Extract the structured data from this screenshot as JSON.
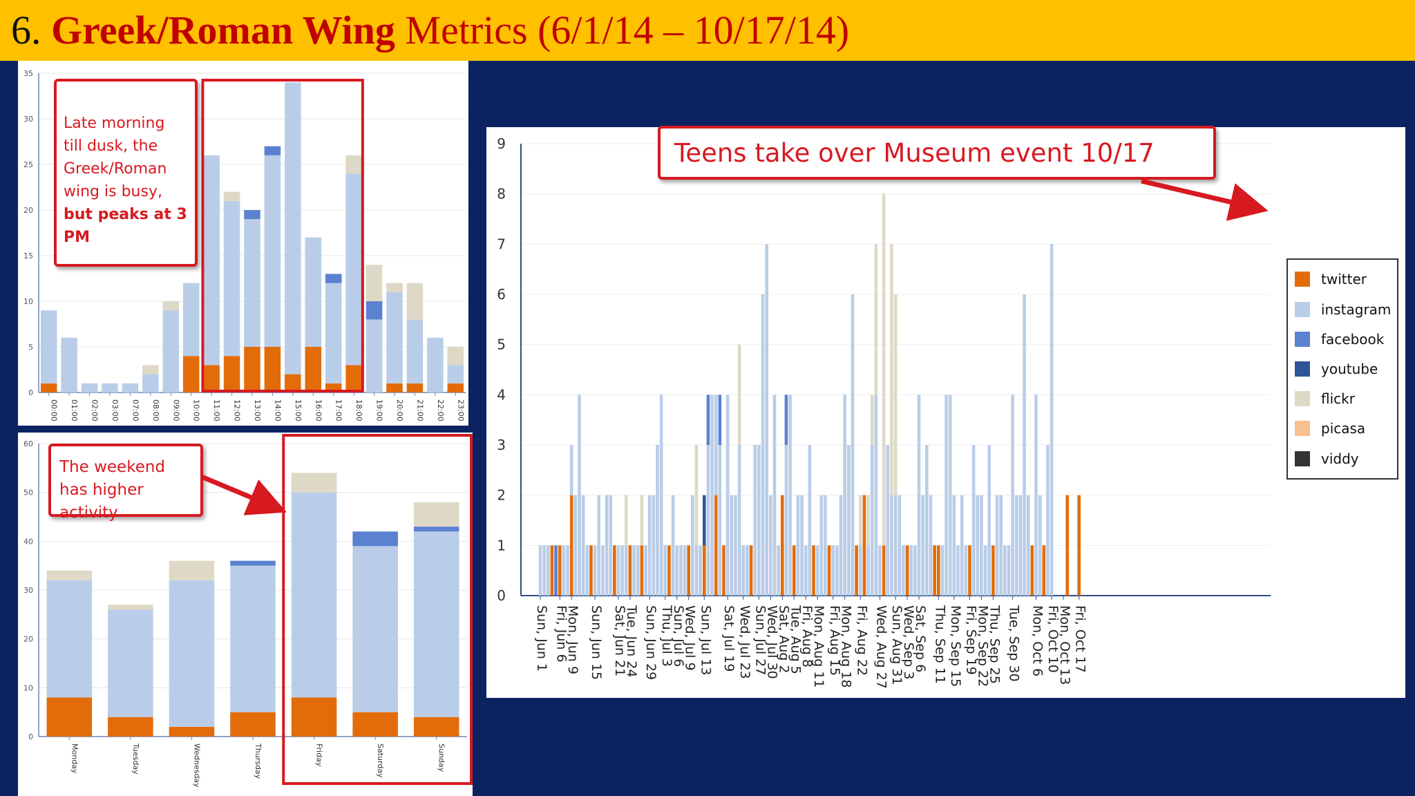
{
  "header": {
    "number": "6.",
    "wing": "Greek/Roman Wing",
    "rest": "Metrics (6/1/14 – 10/17/14)"
  },
  "colors": {
    "twitter": "#e36c0a",
    "instagram": "#b9cde8",
    "facebook": "#5b81d1",
    "youtube": "#2e5597",
    "flickr": "#ddd9c6",
    "picasa": "#f8c08f",
    "viddy": "#333333",
    "highlight": "#d71920",
    "title_bar": "#ffc000",
    "background": "#0b2360"
  },
  "callouts": {
    "hour_line1": "Late morning till dusk, the Greek/Roman wing is busy,",
    "hour_bold": "but peaks at 3 PM",
    "day": "The weekend has higher activity",
    "daily": "Teens take over Museum event 10/17"
  },
  "chart_data": [
    {
      "type": "bar",
      "stacked": true,
      "categories": [
        "00:00",
        "01:00",
        "02:00",
        "03:00",
        "07:00",
        "08:00",
        "09:00",
        "10:00",
        "11:00",
        "12:00",
        "13:00",
        "14:00",
        "15:00",
        "16:00",
        "17:00",
        "18:00",
        "19:00",
        "20:00",
        "21:00",
        "22:00",
        "23:00"
      ],
      "series": [
        {
          "name": "twitter",
          "values": [
            1,
            0,
            0,
            0,
            0,
            0,
            0,
            4,
            3,
            4,
            5,
            5,
            2,
            5,
            1,
            3,
            0,
            1,
            1,
            0,
            1
          ]
        },
        {
          "name": "instagram",
          "values": [
            8,
            6,
            1,
            1,
            1,
            2,
            9,
            8,
            23,
            17,
            14,
            21,
            32,
            12,
            11,
            21,
            8,
            10,
            7,
            6,
            2
          ]
        },
        {
          "name": "facebook",
          "values": [
            0,
            0,
            0,
            0,
            0,
            0,
            0,
            0,
            0,
            0,
            1,
            1,
            0,
            0,
            1,
            0,
            2,
            0,
            0,
            0,
            0
          ]
        },
        {
          "name": "flickr",
          "values": [
            0,
            0,
            0,
            0,
            0,
            1,
            1,
            0,
            0,
            1,
            0,
            0,
            0,
            0,
            0,
            2,
            4,
            1,
            4,
            0,
            2
          ]
        }
      ],
      "ylim": [
        0,
        35
      ],
      "yticks": [
        0,
        5,
        10,
        15,
        20,
        25,
        30,
        35
      ],
      "highlight": [
        "11:00",
        "18:00"
      ]
    },
    {
      "type": "bar",
      "stacked": true,
      "categories": [
        "Monday",
        "Tuesday",
        "Wednesday",
        "Thursday",
        "Friday",
        "Saturday",
        "Sunday"
      ],
      "series": [
        {
          "name": "twitter",
          "values": [
            8,
            4,
            2,
            5,
            8,
            5,
            4
          ]
        },
        {
          "name": "instagram",
          "values": [
            24,
            22,
            30,
            30,
            42,
            34,
            38
          ]
        },
        {
          "name": "facebook",
          "values": [
            0,
            0,
            0,
            1,
            0,
            3,
            1
          ]
        },
        {
          "name": "flickr",
          "values": [
            2,
            1,
            4,
            0,
            4,
            0,
            5
          ]
        }
      ],
      "ylim": [
        0,
        60
      ],
      "yticks": [
        0,
        10,
        20,
        30,
        40,
        50,
        60
      ],
      "highlight": [
        "Friday",
        "Sunday"
      ]
    },
    {
      "type": "bar",
      "stacked": true,
      "ylim": [
        0,
        9
      ],
      "yticks": [
        0,
        1,
        2,
        3,
        4,
        5,
        6,
        7,
        8,
        9
      ],
      "tick_labels": [
        "Sun, Jun 1",
        "Fri, Jun 6",
        "Mon, Jun 9",
        "Sun, Jun 15",
        "Sat, Jun 21",
        "Tue, Jun 24",
        "Sun, Jun 29",
        "Thu, Jul 3",
        "Sun, Jul 6",
        "Wed, Jul 9",
        "Sun, Jul 13",
        "Sat, Jul 19",
        "Wed, Jul 23",
        "Sun, Jul 27",
        "Wed, Jul 30",
        "Sat, Aug 2",
        "Tue, Aug 5",
        "Fri, Aug 8",
        "Mon, Aug 11",
        "Fri, Aug 15",
        "Mon, Aug 18",
        "Fri, Aug 22",
        "Wed, Aug 27",
        "Sun, Aug 31",
        "Wed, Sep 3",
        "Sat, Sep 6",
        "Thu, Sep 11",
        "Mon, Sep 15",
        "Fri, Sep 19",
        "Mon, Sep 22",
        "Thu, Sep 25",
        "Tue, Sep 30",
        "Mon, Oct 6",
        "Fri, Oct 10",
        "Mon, Oct 13",
        "Fri, Oct 17"
      ],
      "tick_days": [
        0,
        5,
        8,
        14,
        20,
        23,
        28,
        32,
        35,
        38,
        42,
        48,
        52,
        56,
        59,
        62,
        65,
        68,
        71,
        75,
        78,
        82,
        87,
        91,
        94,
        97,
        102,
        106,
        110,
        113,
        116,
        121,
        127,
        131,
        134,
        138
      ],
      "series": [
        {
          "name": "twitter",
          "points": [
            [
              3,
              1
            ],
            [
              5,
              1
            ],
            [
              8,
              2
            ],
            [
              13,
              1
            ],
            [
              19,
              1
            ],
            [
              23,
              1
            ],
            [
              26,
              1
            ],
            [
              33,
              1
            ],
            [
              38,
              1
            ],
            [
              42,
              1
            ],
            [
              45,
              2
            ],
            [
              47,
              1
            ],
            [
              54,
              1
            ],
            [
              62,
              2
            ],
            [
              65,
              1
            ],
            [
              70,
              1
            ],
            [
              74,
              1
            ],
            [
              81,
              1
            ],
            [
              83,
              2
            ],
            [
              88,
              1
            ],
            [
              94,
              1
            ],
            [
              101,
              1
            ],
            [
              102,
              1
            ],
            [
              110,
              1
            ],
            [
              116,
              1
            ],
            [
              126,
              1
            ],
            [
              129,
              1
            ],
            [
              135,
              2
            ],
            [
              138,
              2
            ]
          ]
        },
        {
          "name": "instagram",
          "points": [
            [
              0,
              1
            ],
            [
              1,
              1
            ],
            [
              2,
              1
            ],
            [
              3,
              0
            ],
            [
              4,
              0
            ],
            [
              5,
              0
            ],
            [
              6,
              1
            ],
            [
              7,
              1
            ],
            [
              8,
              1
            ],
            [
              9,
              2
            ],
            [
              10,
              4
            ],
            [
              11,
              2
            ],
            [
              12,
              1
            ],
            [
              14,
              1
            ],
            [
              15,
              2
            ],
            [
              16,
              1
            ],
            [
              17,
              2
            ],
            [
              18,
              2
            ],
            [
              20,
              1
            ],
            [
              21,
              1
            ],
            [
              22,
              1
            ],
            [
              24,
              1
            ],
            [
              25,
              1
            ],
            [
              27,
              1
            ],
            [
              28,
              2
            ],
            [
              29,
              2
            ],
            [
              30,
              3
            ],
            [
              31,
              4
            ],
            [
              32,
              1
            ],
            [
              34,
              2
            ],
            [
              35,
              1
            ],
            [
              36,
              1
            ],
            [
              37,
              1
            ],
            [
              39,
              2
            ],
            [
              40,
              1
            ],
            [
              41,
              1
            ],
            [
              43,
              3
            ],
            [
              44,
              4
            ],
            [
              45,
              2
            ],
            [
              46,
              3
            ],
            [
              48,
              4
            ],
            [
              49,
              2
            ],
            [
              50,
              2
            ],
            [
              51,
              3
            ],
            [
              52,
              1
            ],
            [
              53,
              1
            ],
            [
              55,
              3
            ],
            [
              56,
              3
            ],
            [
              57,
              6
            ],
            [
              58,
              7
            ],
            [
              59,
              2
            ],
            [
              60,
              4
            ],
            [
              61,
              1
            ],
            [
              63,
              3
            ],
            [
              64,
              4
            ],
            [
              66,
              2
            ],
            [
              67,
              2
            ],
            [
              68,
              1
            ],
            [
              69,
              3
            ],
            [
              71,
              1
            ],
            [
              72,
              2
            ],
            [
              73,
              2
            ],
            [
              75,
              1
            ],
            [
              76,
              1
            ],
            [
              77,
              2
            ],
            [
              78,
              4
            ],
            [
              79,
              3
            ],
            [
              80,
              6
            ],
            [
              82,
              1
            ],
            [
              84,
              1
            ],
            [
              85,
              3
            ],
            [
              86,
              4
            ],
            [
              87,
              1
            ],
            [
              89,
              3
            ],
            [
              90,
              2
            ],
            [
              91,
              2
            ],
            [
              92,
              2
            ],
            [
              93,
              1
            ],
            [
              95,
              1
            ],
            [
              96,
              1
            ],
            [
              97,
              4
            ],
            [
              98,
              2
            ],
            [
              99,
              3
            ],
            [
              100,
              2
            ],
            [
              103,
              1
            ],
            [
              104,
              4
            ],
            [
              105,
              4
            ],
            [
              106,
              2
            ],
            [
              107,
              1
            ],
            [
              108,
              2
            ],
            [
              109,
              1
            ],
            [
              111,
              3
            ],
            [
              112,
              2
            ],
            [
              113,
              2
            ],
            [
              114,
              1
            ],
            [
              115,
              3
            ],
            [
              117,
              2
            ],
            [
              118,
              2
            ],
            [
              119,
              1
            ],
            [
              120,
              1
            ],
            [
              121,
              4
            ],
            [
              122,
              2
            ],
            [
              123,
              2
            ],
            [
              124,
              6
            ],
            [
              125,
              2
            ],
            [
              127,
              4
            ],
            [
              128,
              2
            ],
            [
              130,
              3
            ],
            [
              131,
              7
            ]
          ]
        },
        {
          "name": "facebook",
          "points": [
            [
              4,
              1
            ],
            [
              43,
              1
            ],
            [
              46,
              1
            ],
            [
              63,
              1
            ]
          ]
        },
        {
          "name": "youtube",
          "points": [
            [
              42,
              1
            ]
          ]
        },
        {
          "name": "flickr",
          "points": [
            [
              22,
              1
            ],
            [
              26,
              1
            ],
            [
              40,
              2
            ],
            [
              51,
              2
            ],
            [
              82,
              1
            ],
            [
              84,
              1
            ],
            [
              85,
              1
            ],
            [
              86,
              3
            ],
            [
              88,
              7
            ],
            [
              90,
              5
            ],
            [
              91,
              4
            ]
          ]
        }
      ]
    }
  ]
}
